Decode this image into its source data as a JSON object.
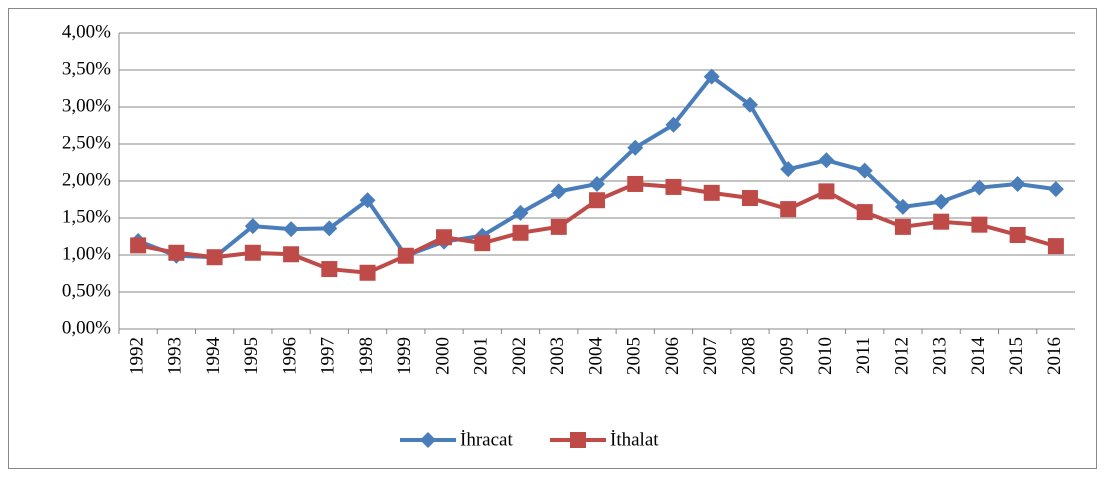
{
  "chart_data": {
    "type": "line",
    "categories": [
      "1992",
      "1993",
      "1994",
      "1995",
      "1996",
      "1997",
      "1998",
      "1999",
      "2000",
      "2001",
      "2002",
      "2003",
      "2004",
      "2005",
      "2006",
      "2007",
      "2008",
      "2009",
      "2010",
      "2011",
      "2012",
      "2013",
      "2014",
      "2015",
      "2016"
    ],
    "series": [
      {
        "name": "İhracat",
        "color": "#4a7ebb",
        "marker": "diamond",
        "values": [
          1.19,
          0.99,
          0.97,
          1.39,
          1.35,
          1.36,
          1.74,
          0.99,
          1.18,
          1.26,
          1.57,
          1.86,
          1.96,
          2.45,
          2.76,
          3.41,
          3.03,
          2.16,
          2.28,
          2.14,
          1.65,
          1.72,
          1.91,
          1.96,
          1.89
        ]
      },
      {
        "name": "İthalat",
        "color": "#be4b48",
        "marker": "square",
        "values": [
          1.13,
          1.03,
          0.97,
          1.03,
          1.01,
          0.81,
          0.76,
          0.99,
          1.24,
          1.16,
          1.3,
          1.38,
          1.74,
          1.96,
          1.92,
          1.84,
          1.77,
          1.62,
          1.86,
          1.58,
          1.38,
          1.45,
          1.41,
          1.27,
          1.12
        ]
      }
    ],
    "ylim": [
      0,
      4
    ],
    "yticks": [
      {
        "value": 0,
        "label": "0,00%"
      },
      {
        "value": 0.5,
        "label": "0,50%"
      },
      {
        "value": 1,
        "label": "1,00%"
      },
      {
        "value": 1.5,
        "label": "1,50%"
      },
      {
        "value": 2,
        "label": "2,00%"
      },
      {
        "value": 2.5,
        "label": "2,50%"
      },
      {
        "value": 3,
        "label": "3,00%"
      },
      {
        "value": 3.5,
        "label": "3,50%"
      },
      {
        "value": 4,
        "label": "4,00%"
      }
    ],
    "grid": true,
    "legend": "bottom"
  }
}
